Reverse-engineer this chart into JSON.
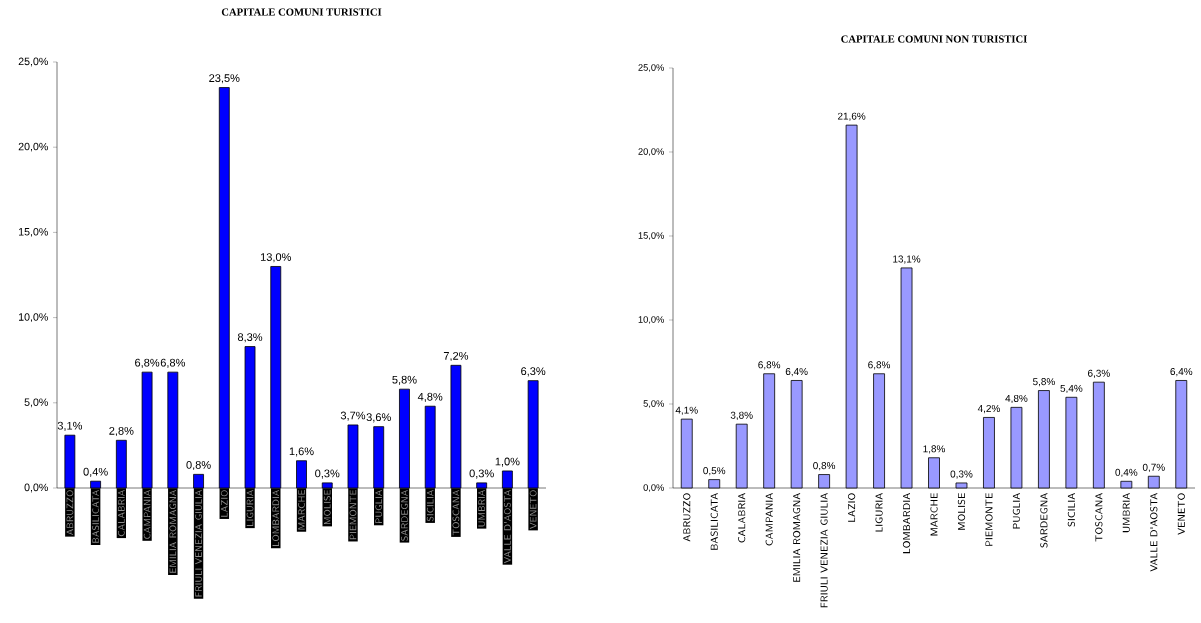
{
  "chart_data": [
    {
      "type": "bar",
      "title": "CAPITALE COMUNI TURISTICI",
      "categories": [
        "ABRUZZO",
        "BASILICATA",
        "CALABRIA",
        "CAMPANIA",
        "EMILIA ROMAGNA",
        "FRIULI VENEZIA GIULIA",
        "LAZIO",
        "LIGURIA",
        "LOMBARDIA",
        "MARCHE",
        "MOLISE",
        "PIEMONTE",
        "PUGLIA",
        "SARDEGNA",
        "SICILIA",
        "TOSCANA",
        "UMBRIA",
        "VALLE D'AOSTA",
        "VENETO"
      ],
      "values": [
        3.1,
        0.4,
        2.8,
        6.8,
        6.8,
        0.8,
        23.5,
        8.3,
        13.0,
        1.6,
        0.3,
        3.7,
        3.6,
        5.8,
        4.8,
        7.2,
        0.3,
        1.0,
        6.3
      ],
      "value_labels": [
        "3,1%",
        "0,4%",
        "2,8%",
        "6,8%",
        "6,8%",
        "0,8%",
        "23,5%",
        "8,3%",
        "13,0%",
        "1,6%",
        "0,3%",
        "3,7%",
        "3,6%",
        "5,8%",
        "4,8%",
        "7,2%",
        "0,3%",
        "1,0%",
        "6,3%"
      ],
      "color": "#0000ff",
      "ylim": [
        0,
        25
      ],
      "yticks": [
        {
          "value": 0,
          "label": "0,0%"
        },
        {
          "value": 5,
          "label": "5,0%"
        },
        {
          "value": 10,
          "label": "10,0%"
        },
        {
          "value": 15,
          "label": "15,0%"
        },
        {
          "value": 20,
          "label": "20,0%"
        },
        {
          "value": 25,
          "label": "25,0%"
        }
      ]
    },
    {
      "type": "bar",
      "title": "CAPITALE COMUNI NON TURISTICI",
      "categories": [
        "ABRUZZO",
        "BASILICATA",
        "CALABRIA",
        "CAMPANIA",
        "EMILIA ROMAGNA",
        "FRIULI VENEZIA GIULIA",
        "LAZIO",
        "LIGURIA",
        "LOMBARDIA",
        "MARCHE",
        "MOLISE",
        "PIEMONTE",
        "PUGLIA",
        "SARDEGNA",
        "SICILIA",
        "TOSCANA",
        "UMBRIA",
        "VALLE D'AOSTA",
        "VENETO"
      ],
      "values": [
        4.1,
        0.5,
        3.8,
        6.8,
        6.4,
        0.8,
        21.6,
        6.8,
        13.1,
        1.8,
        0.3,
        4.2,
        4.8,
        5.8,
        5.4,
        6.3,
        0.4,
        0.7,
        6.4
      ],
      "value_labels": [
        "4,1%",
        "0,5%",
        "3,8%",
        "6,8%",
        "6,4%",
        "0,8%",
        "21,6%",
        "6,8%",
        "13,1%",
        "1,8%",
        "0,3%",
        "4,2%",
        "4,8%",
        "5,8%",
        "5,4%",
        "6,3%",
        "0,4%",
        "0,7%",
        "6,4%"
      ],
      "color": "#9999ff",
      "ylim": [
        0,
        25
      ],
      "yticks": [
        {
          "value": 0,
          "label": "0,0%"
        },
        {
          "value": 5,
          "label": "5,0%"
        },
        {
          "value": 10,
          "label": "10,0%"
        },
        {
          "value": 15,
          "label": "15,0%"
        },
        {
          "value": 20,
          "label": "20,0%"
        },
        {
          "value": 25,
          "label": "25,0%"
        }
      ]
    }
  ]
}
